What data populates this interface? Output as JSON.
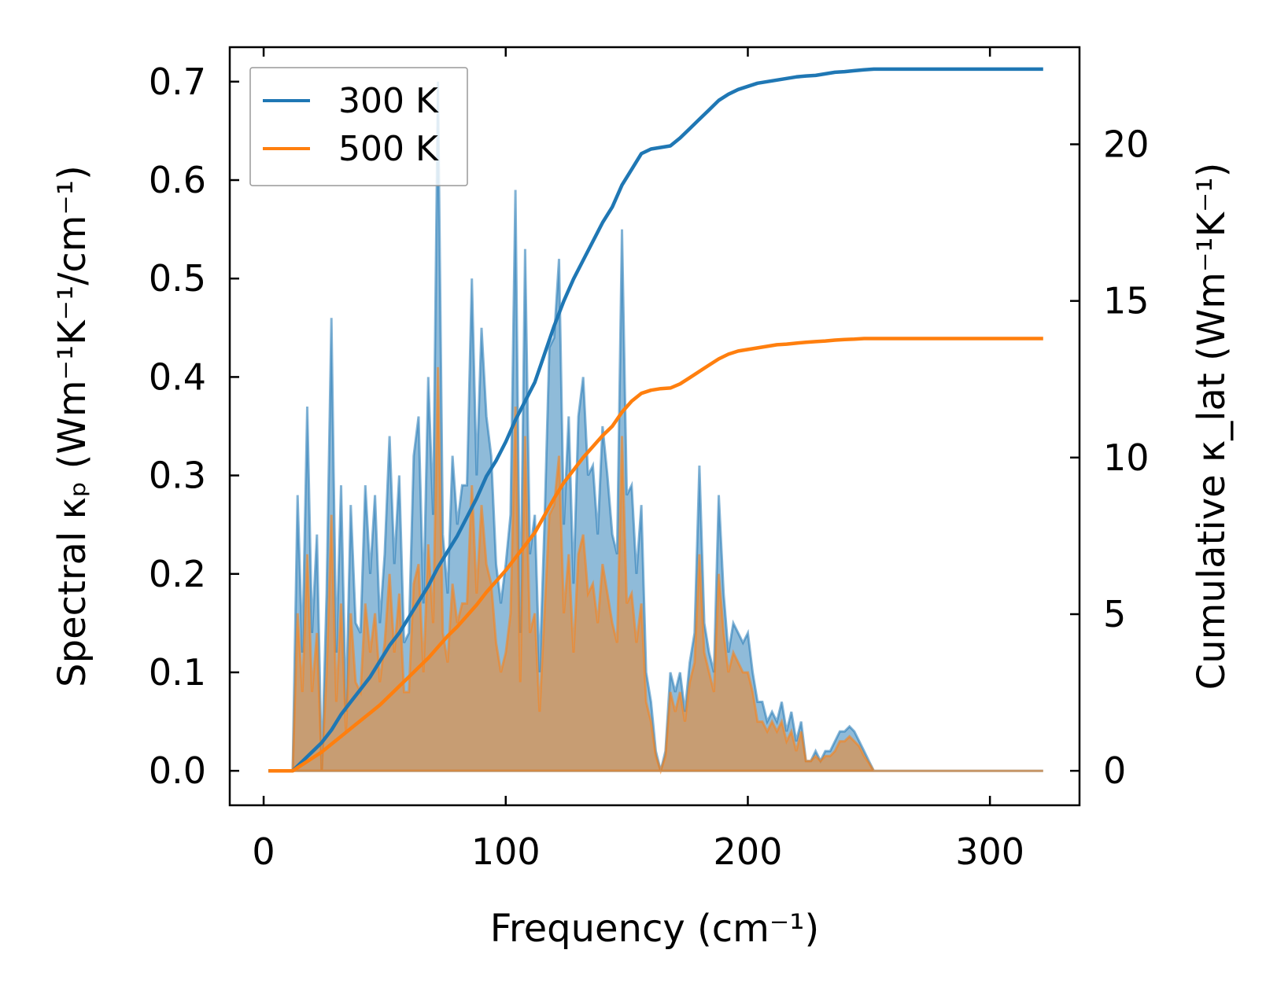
{
  "chart_data": {
    "type": "line",
    "title": "",
    "xlabel": "Frequency (cm⁻¹)",
    "ylabel_left": "Spectral κₚ (Wm⁻¹K⁻¹/cm⁻¹)",
    "ylabel_right": "Cumulative κ_lat (Wm⁻¹K⁻¹)",
    "xlim": [
      -14,
      337
    ],
    "ylim_left": [
      -0.035,
      0.735
    ],
    "ylim_right": [
      -1.1,
      23.1
    ],
    "xticks": [
      0,
      100,
      200,
      300
    ],
    "yticks_left": [
      0.0,
      0.1,
      0.2,
      0.3,
      0.4,
      0.5,
      0.6,
      0.7
    ],
    "yticks_right": [
      0,
      5,
      10,
      15,
      20
    ],
    "xtick_labels": [
      "0",
      "100",
      "200",
      "300"
    ],
    "ytick_labels_left": [
      "0.0",
      "0.1",
      "0.2",
      "0.3",
      "0.4",
      "0.5",
      "0.6",
      "0.7"
    ],
    "ytick_labels_right": [
      "0",
      "5",
      "10",
      "15",
      "20"
    ],
    "legend_position": "top-left",
    "series": [
      {
        "name": "300 K",
        "color": "#1f77b4",
        "fill_color": "#1f77b4",
        "spectral_x": [
          2,
          12,
          14,
          16,
          18,
          20,
          22,
          24,
          26,
          28,
          30,
          32,
          34,
          36,
          38,
          40,
          42,
          44,
          46,
          48,
          50,
          52,
          54,
          56,
          58,
          60,
          62,
          64,
          66,
          68,
          70,
          72,
          74,
          76,
          78,
          80,
          82,
          84,
          86,
          88,
          90,
          92,
          94,
          96,
          98,
          100,
          102,
          104,
          106,
          108,
          110,
          112,
          114,
          116,
          118,
          120,
          122,
          124,
          126,
          128,
          130,
          132,
          134,
          136,
          138,
          140,
          142,
          144,
          146,
          148,
          150,
          152,
          154,
          156,
          158,
          160,
          162,
          164,
          166,
          168,
          170,
          172,
          174,
          176,
          178,
          180,
          182,
          184,
          186,
          188,
          190,
          192,
          194,
          196,
          198,
          200,
          202,
          204,
          206,
          208,
          210,
          212,
          214,
          216,
          218,
          220,
          222,
          224,
          226,
          228,
          230,
          232,
          234,
          236,
          238,
          240,
          242,
          244,
          246,
          248,
          250,
          252,
          254,
          260,
          280,
          300,
          322
        ],
        "spectral_y": [
          0,
          0,
          0.28,
          0.12,
          0.37,
          0.14,
          0.24,
          0.0,
          0.18,
          0.46,
          0.12,
          0.29,
          0.06,
          0.27,
          0.15,
          0.14,
          0.29,
          0.2,
          0.28,
          0.15,
          0.22,
          0.34,
          0.21,
          0.3,
          0.13,
          0.14,
          0.32,
          0.36,
          0.17,
          0.4,
          0.26,
          0.7,
          0.24,
          0.18,
          0.32,
          0.25,
          0.29,
          0.29,
          0.5,
          0.3,
          0.45,
          0.36,
          0.32,
          0.21,
          0.17,
          0.21,
          0.26,
          0.59,
          0.14,
          0.53,
          0.22,
          0.26,
          0.1,
          0.25,
          0.43,
          0.44,
          0.52,
          0.25,
          0.36,
          0.19,
          0.36,
          0.4,
          0.3,
          0.31,
          0.24,
          0.35,
          0.3,
          0.24,
          0.22,
          0.55,
          0.28,
          0.29,
          0.2,
          0.27,
          0.1,
          0.07,
          0.02,
          0.0,
          0.02,
          0.1,
          0.08,
          0.1,
          0.06,
          0.11,
          0.14,
          0.31,
          0.15,
          0.12,
          0.1,
          0.28,
          0.18,
          0.12,
          0.15,
          0.14,
          0.13,
          0.14,
          0.1,
          0.07,
          0.07,
          0.05,
          0.06,
          0.05,
          0.07,
          0.04,
          0.06,
          0.03,
          0.05,
          0.01,
          0.01,
          0.02,
          0.01,
          0.02,
          0.02,
          0.03,
          0.04,
          0.04,
          0.045,
          0.04,
          0.03,
          0.02,
          0.01,
          0.0,
          0,
          0,
          0,
          0,
          0
        ],
        "cumulative_x": [
          2,
          12,
          16,
          20,
          24,
          28,
          32,
          36,
          40,
          44,
          48,
          52,
          56,
          60,
          64,
          68,
          72,
          76,
          80,
          84,
          88,
          92,
          96,
          100,
          104,
          108,
          112,
          116,
          120,
          124,
          128,
          132,
          136,
          140,
          144,
          148,
          152,
          156,
          160,
          164,
          168,
          172,
          176,
          180,
          184,
          188,
          192,
          196,
          200,
          204,
          208,
          212,
          216,
          220,
          224,
          228,
          232,
          236,
          240,
          244,
          248,
          252,
          256,
          270,
          300,
          322
        ],
        "cumulative_y": [
          0,
          0,
          0.3,
          0.6,
          0.9,
          1.3,
          1.8,
          2.2,
          2.6,
          3.0,
          3.5,
          4.0,
          4.4,
          4.9,
          5.4,
          5.9,
          6.5,
          7.0,
          7.5,
          8.1,
          8.7,
          9.4,
          9.9,
          10.5,
          11.2,
          11.8,
          12.4,
          13.3,
          14.2,
          15.0,
          15.7,
          16.3,
          16.9,
          17.5,
          18.0,
          18.7,
          19.2,
          19.7,
          19.85,
          19.9,
          19.95,
          20.2,
          20.5,
          20.8,
          21.1,
          21.4,
          21.6,
          21.75,
          21.85,
          21.95,
          22.0,
          22.05,
          22.1,
          22.15,
          22.18,
          22.2,
          22.25,
          22.3,
          22.32,
          22.35,
          22.38,
          22.4,
          22.4,
          22.4,
          22.4,
          22.4
        ]
      },
      {
        "name": "500 K",
        "color": "#ff7f0e",
        "fill_color": "#ff7f0e",
        "spectral_x": [
          2,
          12,
          14,
          16,
          18,
          20,
          22,
          24,
          26,
          28,
          30,
          32,
          34,
          36,
          38,
          40,
          42,
          44,
          46,
          48,
          50,
          52,
          54,
          56,
          58,
          60,
          62,
          64,
          66,
          68,
          70,
          72,
          74,
          76,
          78,
          80,
          82,
          84,
          86,
          88,
          90,
          92,
          94,
          96,
          98,
          100,
          102,
          104,
          106,
          108,
          110,
          112,
          114,
          116,
          118,
          120,
          122,
          124,
          126,
          128,
          130,
          132,
          134,
          136,
          138,
          140,
          142,
          144,
          146,
          148,
          150,
          152,
          154,
          156,
          158,
          160,
          162,
          164,
          166,
          168,
          170,
          172,
          174,
          176,
          178,
          180,
          182,
          184,
          186,
          188,
          190,
          192,
          194,
          196,
          198,
          200,
          202,
          204,
          206,
          208,
          210,
          212,
          214,
          216,
          218,
          220,
          222,
          224,
          226,
          228,
          230,
          232,
          234,
          236,
          238,
          240,
          242,
          244,
          246,
          248,
          250,
          252,
          254,
          260,
          280,
          300,
          322
        ],
        "spectral_y": [
          0,
          0,
          0.16,
          0.08,
          0.22,
          0.08,
          0.14,
          0.0,
          0.1,
          0.26,
          0.07,
          0.17,
          0.04,
          0.16,
          0.09,
          0.08,
          0.17,
          0.12,
          0.16,
          0.09,
          0.13,
          0.2,
          0.12,
          0.18,
          0.08,
          0.08,
          0.19,
          0.21,
          0.1,
          0.23,
          0.15,
          0.41,
          0.14,
          0.11,
          0.19,
          0.15,
          0.17,
          0.17,
          0.29,
          0.18,
          0.27,
          0.21,
          0.19,
          0.13,
          0.1,
          0.12,
          0.16,
          0.37,
          0.09,
          0.34,
          0.14,
          0.16,
          0.06,
          0.16,
          0.26,
          0.27,
          0.32,
          0.16,
          0.22,
          0.12,
          0.22,
          0.24,
          0.18,
          0.19,
          0.15,
          0.21,
          0.18,
          0.15,
          0.13,
          0.34,
          0.17,
          0.18,
          0.13,
          0.17,
          0.07,
          0.05,
          0.015,
          0.0,
          0.015,
          0.08,
          0.06,
          0.08,
          0.05,
          0.09,
          0.11,
          0.22,
          0.12,
          0.1,
          0.08,
          0.2,
          0.14,
          0.1,
          0.12,
          0.11,
          0.1,
          0.1,
          0.08,
          0.05,
          0.05,
          0.04,
          0.05,
          0.04,
          0.05,
          0.03,
          0.04,
          0.02,
          0.04,
          0.01,
          0.01,
          0.015,
          0.01,
          0.015,
          0.015,
          0.02,
          0.03,
          0.03,
          0.035,
          0.03,
          0.025,
          0.015,
          0.008,
          0.0,
          0,
          0,
          0,
          0,
          0
        ],
        "cumulative_x": [
          2,
          12,
          16,
          20,
          24,
          28,
          32,
          36,
          40,
          44,
          48,
          52,
          56,
          60,
          64,
          68,
          72,
          76,
          80,
          84,
          88,
          92,
          96,
          100,
          104,
          108,
          112,
          116,
          120,
          124,
          128,
          132,
          136,
          140,
          144,
          148,
          152,
          156,
          160,
          164,
          168,
          172,
          176,
          180,
          184,
          188,
          192,
          196,
          200,
          204,
          208,
          212,
          216,
          220,
          224,
          228,
          232,
          236,
          240,
          244,
          248,
          252,
          256,
          270,
          300,
          322
        ],
        "cumulative_y": [
          0,
          0,
          0.2,
          0.4,
          0.6,
          0.85,
          1.1,
          1.35,
          1.6,
          1.85,
          2.1,
          2.4,
          2.7,
          3.0,
          3.3,
          3.6,
          3.95,
          4.3,
          4.6,
          4.95,
          5.3,
          5.7,
          6.05,
          6.4,
          6.8,
          7.2,
          7.6,
          8.15,
          8.7,
          9.2,
          9.6,
          10.0,
          10.35,
          10.7,
          11.0,
          11.45,
          11.8,
          12.05,
          12.15,
          12.2,
          12.22,
          12.35,
          12.55,
          12.75,
          12.95,
          13.15,
          13.3,
          13.4,
          13.45,
          13.5,
          13.55,
          13.6,
          13.62,
          13.65,
          13.68,
          13.7,
          13.72,
          13.75,
          13.77,
          13.78,
          13.8,
          13.8,
          13.8,
          13.8,
          13.8,
          13.8
        ]
      }
    ]
  }
}
